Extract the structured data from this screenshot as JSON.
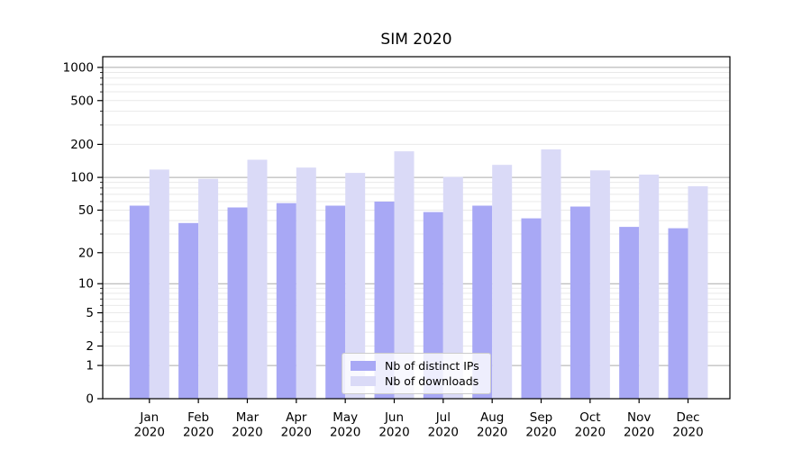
{
  "chart_data": {
    "type": "bar",
    "title": "SIM 2020",
    "months": [
      "Jan",
      "Feb",
      "Mar",
      "Apr",
      "May",
      "Jun",
      "Jul",
      "Aug",
      "Sep",
      "Oct",
      "Nov",
      "Dec"
    ],
    "year_label": "2020",
    "series": [
      {
        "name": "Nb of distinct IPs",
        "color": "#a8a8f5",
        "values": [
          55,
          38,
          53,
          58,
          55,
          60,
          48,
          55,
          42,
          54,
          35,
          34
        ]
      },
      {
        "name": "Nb of downloads",
        "color": "#dadaf7",
        "values": [
          118,
          97,
          145,
          123,
          110,
          173,
          101,
          130,
          180,
          116,
          106,
          83
        ]
      }
    ],
    "y_ticks": [
      0,
      1,
      2,
      5,
      10,
      20,
      50,
      100,
      200,
      500,
      1000
    ],
    "y_major_gridlines": [
      1,
      10,
      100,
      1000
    ],
    "y_minor_gridlines": [
      2,
      3,
      4,
      5,
      6,
      7,
      8,
      9,
      20,
      30,
      40,
      50,
      60,
      70,
      80,
      90,
      200,
      300,
      400,
      500,
      600,
      700,
      800,
      900
    ],
    "y_scale": "log10(v+1)",
    "ylim": [
      0,
      1250
    ],
    "xlabel": "",
    "ylabel": "",
    "grid": true,
    "legend": {
      "position": "lower center",
      "entries": [
        "Nb of distinct IPs",
        "Nb of downloads"
      ]
    },
    "colors": {
      "axis": "#000000",
      "tick_label": "#000000",
      "major_grid": "#ababab",
      "minor_grid": "#e9e9e9",
      "background": "#ffffff",
      "legend_border": "#cccccc"
    }
  }
}
